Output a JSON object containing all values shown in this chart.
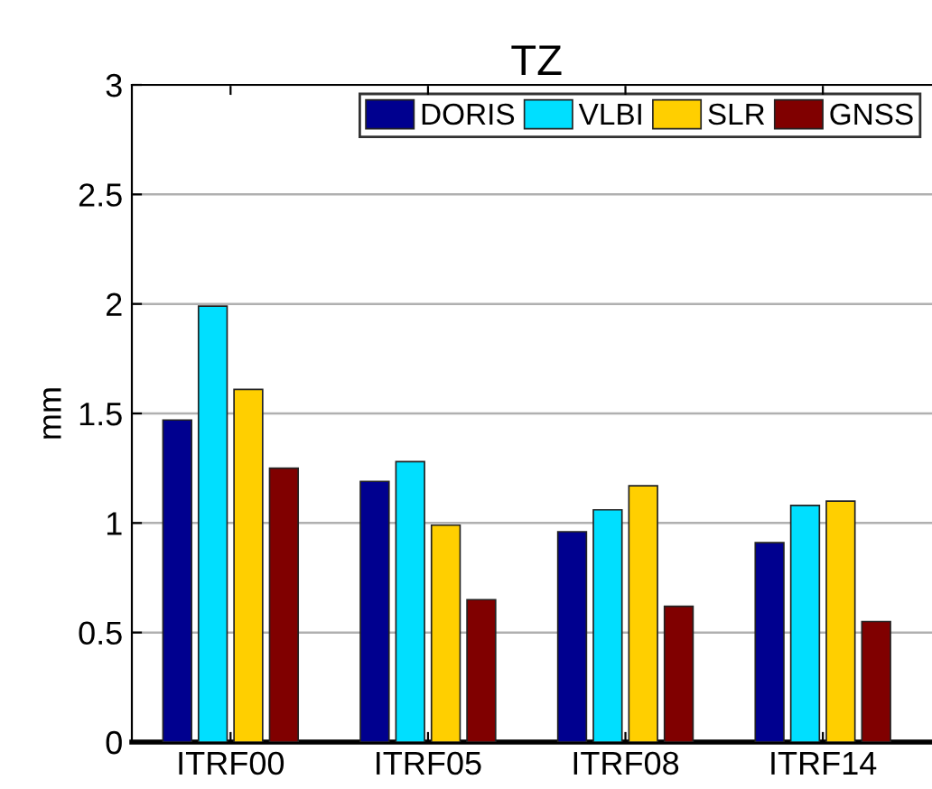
{
  "chart_data": {
    "type": "bar",
    "title": "TZ",
    "ylabel": "mm",
    "categories": [
      "ITRF00",
      "ITRF05",
      "ITRF08",
      "ITRF14"
    ],
    "series": [
      {
        "name": "DORIS",
        "color": "#00008f",
        "values": [
          1.47,
          1.19,
          0.96,
          0.91
        ]
      },
      {
        "name": "VLBI",
        "color": "#00dfff",
        "values": [
          1.99,
          1.28,
          1.06,
          1.08
        ]
      },
      {
        "name": "SLR",
        "color": "#ffcf00",
        "values": [
          1.61,
          0.99,
          1.17,
          1.1
        ]
      },
      {
        "name": "GNSS",
        "color": "#800000",
        "values": [
          1.25,
          0.65,
          0.62,
          0.55
        ]
      }
    ],
    "ylim": [
      0,
      3
    ],
    "yticks": [
      0,
      0.5,
      1,
      1.5,
      2,
      2.5,
      3
    ],
    "grid": "y",
    "legend": "top right"
  }
}
